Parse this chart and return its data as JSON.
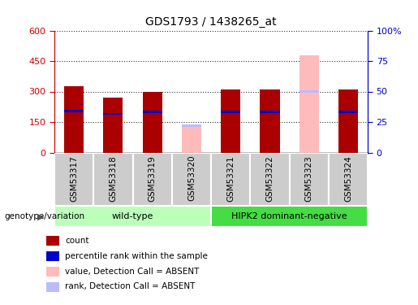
{
  "title": "GDS1793 / 1438265_at",
  "samples": [
    "GSM53317",
    "GSM53318",
    "GSM53319",
    "GSM53320",
    "GSM53321",
    "GSM53322",
    "GSM53323",
    "GSM53324"
  ],
  "count_values": [
    325,
    270,
    300,
    0,
    312,
    312,
    0,
    312
  ],
  "rank_within_values": [
    205,
    190,
    200,
    0,
    200,
    200,
    0,
    200
  ],
  "absent_value_values": [
    0,
    0,
    0,
    130,
    0,
    0,
    480,
    0
  ],
  "absent_rank_values": [
    0,
    0,
    0,
    22,
    0,
    0,
    50,
    0
  ],
  "count_color": "#aa0000",
  "rank_color": "#0000cc",
  "absent_value_color": "#ffbbbb",
  "absent_rank_color": "#bbbbff",
  "ylim_left": [
    0,
    600
  ],
  "ylim_right": [
    0,
    100
  ],
  "yticks_left": [
    0,
    150,
    300,
    450,
    600
  ],
  "yticks_right": [
    0,
    25,
    50,
    75,
    100
  ],
  "ytick_labels_left": [
    "0",
    "150",
    "300",
    "450",
    "600"
  ],
  "ytick_labels_right": [
    "0",
    "25",
    "50",
    "75",
    "100%"
  ],
  "genotype_groups": [
    {
      "label": "wild-type",
      "start": 0,
      "end": 4,
      "color": "#bbffbb"
    },
    {
      "label": "HIPK2 dominant-negative",
      "start": 4,
      "end": 8,
      "color": "#44dd44"
    }
  ],
  "legend_items": [
    {
      "label": "count",
      "color": "#aa0000"
    },
    {
      "label": "percentile rank within the sample",
      "color": "#0000cc"
    },
    {
      "label": "value, Detection Call = ABSENT",
      "color": "#ffbbbb"
    },
    {
      "label": "rank, Detection Call = ABSENT",
      "color": "#bbbbff"
    }
  ],
  "bar_width": 0.5,
  "genotype_label": "genotype/variation",
  "tick_color_left": "#cc0000",
  "tick_color_right": "#0000cc",
  "grid_color": "#000000",
  "label_box_color": "#cccccc"
}
